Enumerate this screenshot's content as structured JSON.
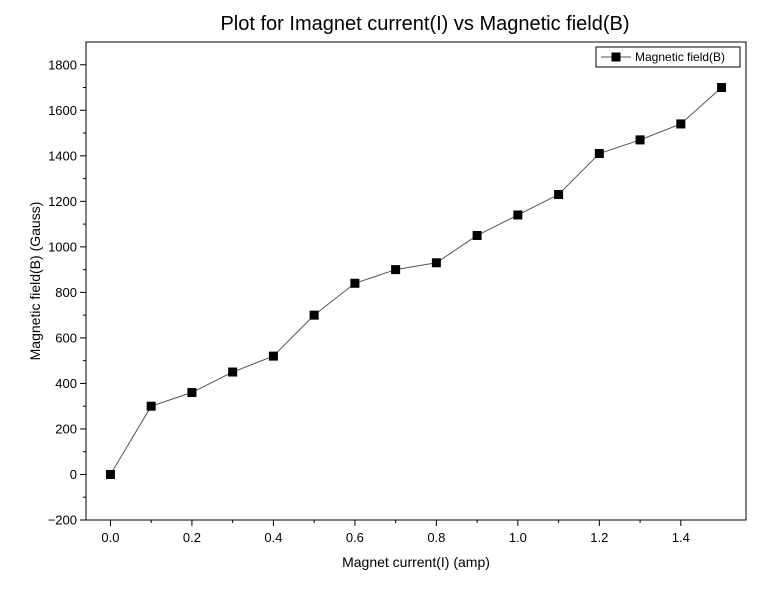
{
  "chart_data": {
    "type": "line",
    "title": "Plot for Imagnet current(I) vs Magnetic field(B)",
    "xlabel": "Magnet current(I) (amp)",
    "ylabel": "Magnetic field(B) (Gauss)",
    "xlim": [
      -0.06,
      1.56
    ],
    "ylim": [
      -200,
      1900
    ],
    "x_ticks": [
      0.0,
      0.2,
      0.4,
      0.6,
      0.8,
      1.0,
      1.2,
      1.4
    ],
    "x_tick_labels": [
      "0.0",
      "0.2",
      "0.4",
      "0.6",
      "0.8",
      "1.0",
      "1.2",
      "1.4"
    ],
    "y_ticks": [
      -200,
      0,
      200,
      400,
      600,
      800,
      1000,
      1200,
      1400,
      1600,
      1800
    ],
    "y_tick_labels": [
      "−200",
      "0",
      "200",
      "400",
      "600",
      "800",
      "1000",
      "1200",
      "1400",
      "1600",
      "1800"
    ],
    "grid": false,
    "legend_position": "top-right",
    "series": [
      {
        "name": "Magnetic field(B)",
        "marker": "square",
        "color": "#000000",
        "line_color": "#555555",
        "x": [
          0.0,
          0.1,
          0.2,
          0.3,
          0.4,
          0.5,
          0.6,
          0.7,
          0.8,
          0.9,
          1.0,
          1.1,
          1.2,
          1.3,
          1.4,
          1.5
        ],
        "y": [
          0,
          300,
          360,
          450,
          520,
          700,
          840,
          900,
          930,
          1050,
          1140,
          1230,
          1410,
          1470,
          1540,
          1700
        ]
      }
    ]
  }
}
